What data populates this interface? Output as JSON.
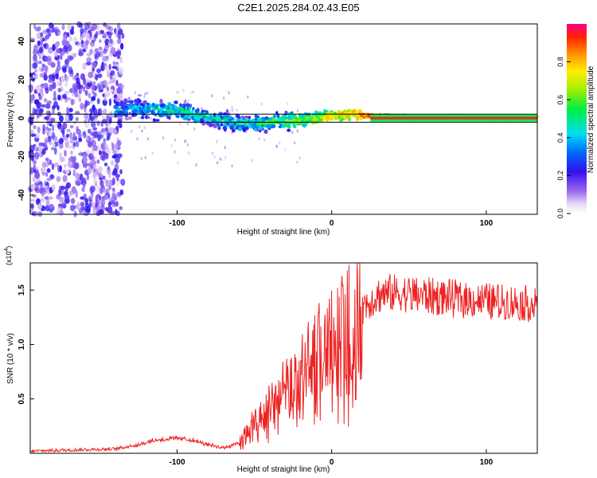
{
  "title": "C2E1.2025.284.02.43.E05",
  "chart_data": [
    {
      "type": "heatmap",
      "name": "spectrogram",
      "xlabel": "Height of straight line (km)",
      "ylabel": "Frequency (Hz)",
      "xlim": [
        -195,
        133
      ],
      "ylim": [
        -50,
        49
      ],
      "xticks": [
        -100,
        0,
        100
      ],
      "yticks": [
        -40,
        -20,
        0,
        20,
        40
      ],
      "colorbar": {
        "label": "Normalized spectral amplitude",
        "range": [
          0,
          1
        ],
        "ticks": [
          "0.0",
          "0.2",
          "0.4",
          "0.6",
          "0.8"
        ]
      },
      "description_points": [
        {
          "x": -190,
          "y": 0,
          "amp": 0.15
        },
        {
          "x": -130,
          "y": 5,
          "amp": 0.4
        },
        {
          "x": -100,
          "y": 4,
          "amp": 0.5
        },
        {
          "x": -60,
          "y": -3,
          "amp": 0.45
        },
        {
          "x": -20,
          "y": -1,
          "amp": 0.6
        },
        {
          "x": 10,
          "y": 2,
          "amp": 0.8
        },
        {
          "x": 50,
          "y": 0,
          "amp": 0.95
        },
        {
          "x": 130,
          "y": 0,
          "amp": 0.95
        }
      ]
    },
    {
      "type": "line",
      "name": "snr",
      "xlabel": "Height of straight line (km)",
      "ylabel": "SNR (10 * v/v)",
      "scale_label": "(x10",
      "scale_exp": "4",
      "scale_close": ")",
      "xlim": [
        -195,
        133
      ],
      "ylim": [
        0,
        1.75
      ],
      "xticks": [
        -100,
        0,
        100
      ],
      "yticks": [
        0.5,
        1.0,
        1.5
      ],
      "ytick_labels": [
        "0.5",
        "1.0",
        "1.5"
      ],
      "color": "#ee2222",
      "x": [
        -195,
        -170,
        -140,
        -125,
        -115,
        -100,
        -90,
        -80,
        -70,
        -60,
        -50,
        -40,
        -30,
        -20,
        -10,
        0,
        10,
        20,
        30,
        40,
        60,
        80,
        100,
        120,
        133
      ],
      "values": [
        0.02,
        0.03,
        0.04,
        0.08,
        0.12,
        0.14,
        0.12,
        0.08,
        0.05,
        0.1,
        0.28,
        0.45,
        0.6,
        0.75,
        0.95,
        1.05,
        1.18,
        1.35,
        1.45,
        1.47,
        1.45,
        1.42,
        1.4,
        1.38,
        1.37
      ]
    }
  ]
}
